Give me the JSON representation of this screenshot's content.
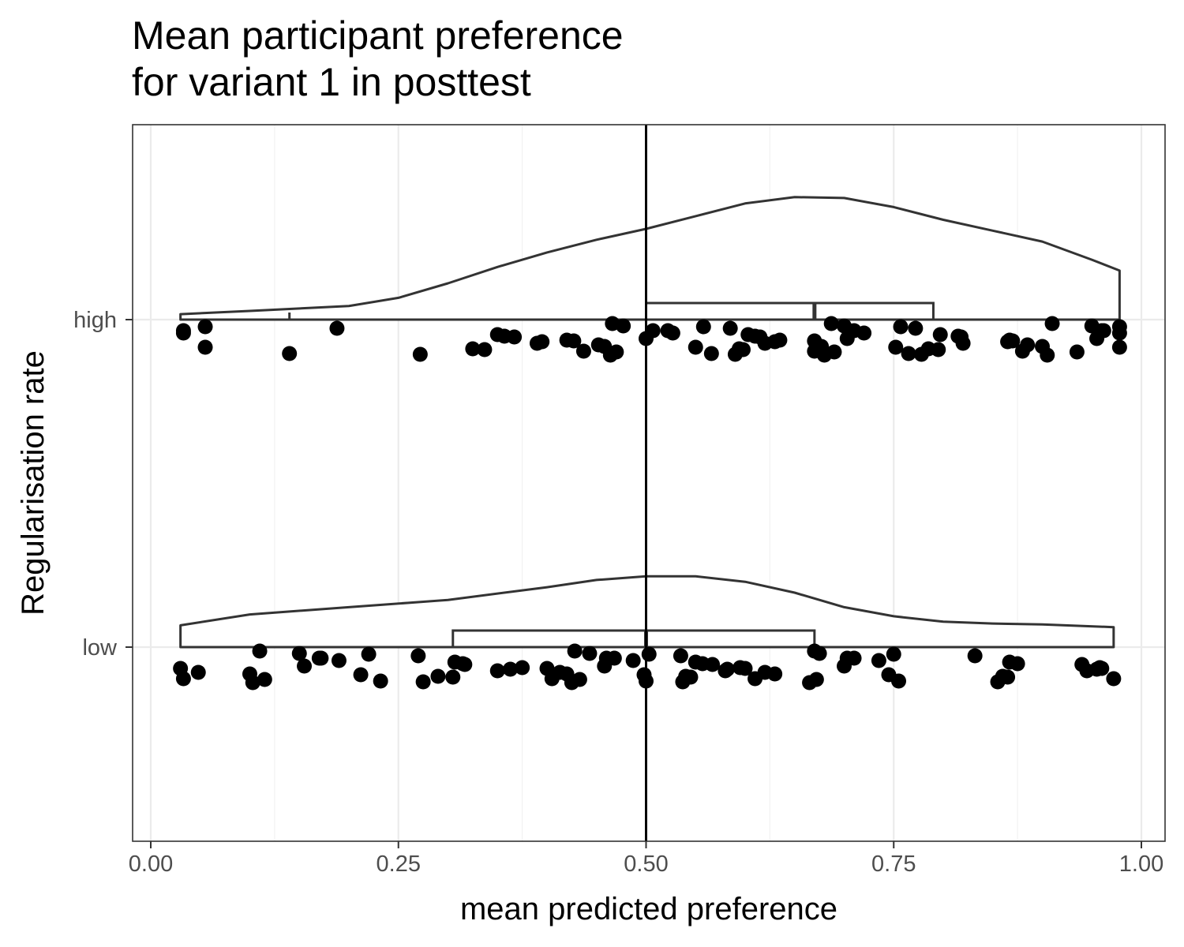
{
  "chart_data": {
    "type": "raincloud",
    "title_lines": [
      "Mean participant preference",
      "for variant 1 in posttest"
    ],
    "xlabel": "mean predicted preference",
    "ylabel": "Regularisation rate",
    "xlim": [
      -0.02,
      1.02
    ],
    "x_ticks": [
      0.0,
      0.25,
      0.5,
      0.75,
      1.0
    ],
    "x_tick_labels": [
      "0.00",
      "0.25",
      "0.50",
      "0.75",
      "1.00"
    ],
    "categories": [
      "high",
      "low"
    ],
    "reference_line_x": 0.5,
    "grid": true,
    "groups": [
      {
        "name": "high",
        "box": {
          "whisker_low": 0.033,
          "q1": 0.5,
          "median": 0.67,
          "q3": 0.79,
          "whisker_high": 0.978,
          "lower_whisker_tick": 0.14
        },
        "density": [
          [
            0.03,
            0.03
          ],
          [
            0.1,
            0.048
          ],
          [
            0.2,
            0.075
          ],
          [
            0.25,
            0.12
          ],
          [
            0.3,
            0.2
          ],
          [
            0.35,
            0.29
          ],
          [
            0.4,
            0.37
          ],
          [
            0.45,
            0.44
          ],
          [
            0.5,
            0.5
          ],
          [
            0.55,
            0.57
          ],
          [
            0.6,
            0.64
          ],
          [
            0.65,
            0.675
          ],
          [
            0.7,
            0.67
          ],
          [
            0.75,
            0.62
          ],
          [
            0.8,
            0.55
          ],
          [
            0.85,
            0.49
          ],
          [
            0.9,
            0.43
          ],
          [
            0.95,
            0.33
          ],
          [
            0.978,
            0.27
          ]
        ],
        "points": [
          0.033,
          0.033,
          0.055,
          0.055,
          0.14,
          0.188,
          0.272,
          0.325,
          0.337,
          0.35,
          0.357,
          0.367,
          0.39,
          0.395,
          0.42,
          0.427,
          0.437,
          0.452,
          0.458,
          0.464,
          0.466,
          0.47,
          0.477,
          0.5,
          0.507,
          0.522,
          0.527,
          0.55,
          0.558,
          0.566,
          0.585,
          0.59,
          0.594,
          0.598,
          0.603,
          0.61,
          0.615,
          0.62,
          0.63,
          0.635,
          0.67,
          0.67,
          0.672,
          0.677,
          0.68,
          0.687,
          0.69,
          0.7,
          0.703,
          0.705,
          0.71,
          0.72,
          0.752,
          0.757,
          0.765,
          0.772,
          0.778,
          0.785,
          0.795,
          0.797,
          0.815,
          0.818,
          0.82,
          0.865,
          0.867,
          0.87,
          0.88,
          0.885,
          0.9,
          0.905,
          0.91,
          0.935,
          0.95,
          0.955,
          0.96,
          0.962,
          0.978,
          0.978,
          0.978
        ]
      },
      {
        "name": "low",
        "box": {
          "whisker_low": 0.03,
          "q1": 0.305,
          "median": 0.5,
          "q3": 0.67,
          "whisker_high": 0.972
        },
        "density": [
          [
            0.03,
            0.12
          ],
          [
            0.1,
            0.18
          ],
          [
            0.2,
            0.22
          ],
          [
            0.3,
            0.26
          ],
          [
            0.4,
            0.33
          ],
          [
            0.45,
            0.37
          ],
          [
            0.5,
            0.39
          ],
          [
            0.55,
            0.39
          ],
          [
            0.6,
            0.36
          ],
          [
            0.65,
            0.3
          ],
          [
            0.7,
            0.22
          ],
          [
            0.75,
            0.17
          ],
          [
            0.8,
            0.14
          ],
          [
            0.85,
            0.13
          ],
          [
            0.9,
            0.125
          ],
          [
            0.972,
            0.11
          ]
        ],
        "points": [
          0.03,
          0.033,
          0.048,
          0.1,
          0.103,
          0.11,
          0.115,
          0.15,
          0.155,
          0.17,
          0.172,
          0.19,
          0.212,
          0.22,
          0.232,
          0.27,
          0.275,
          0.29,
          0.305,
          0.307,
          0.315,
          0.317,
          0.35,
          0.363,
          0.375,
          0.4,
          0.405,
          0.413,
          0.42,
          0.425,
          0.428,
          0.433,
          0.443,
          0.458,
          0.46,
          0.468,
          0.487,
          0.498,
          0.503,
          0.5,
          0.535,
          0.537,
          0.54,
          0.545,
          0.55,
          0.557,
          0.567,
          0.58,
          0.582,
          0.595,
          0.6,
          0.61,
          0.62,
          0.63,
          0.665,
          0.67,
          0.672,
          0.675,
          0.7,
          0.703,
          0.71,
          0.735,
          0.745,
          0.75,
          0.755,
          0.832,
          0.855,
          0.86,
          0.865,
          0.867,
          0.875,
          0.94,
          0.945,
          0.955,
          0.958,
          0.96,
          0.972
        ]
      }
    ]
  }
}
